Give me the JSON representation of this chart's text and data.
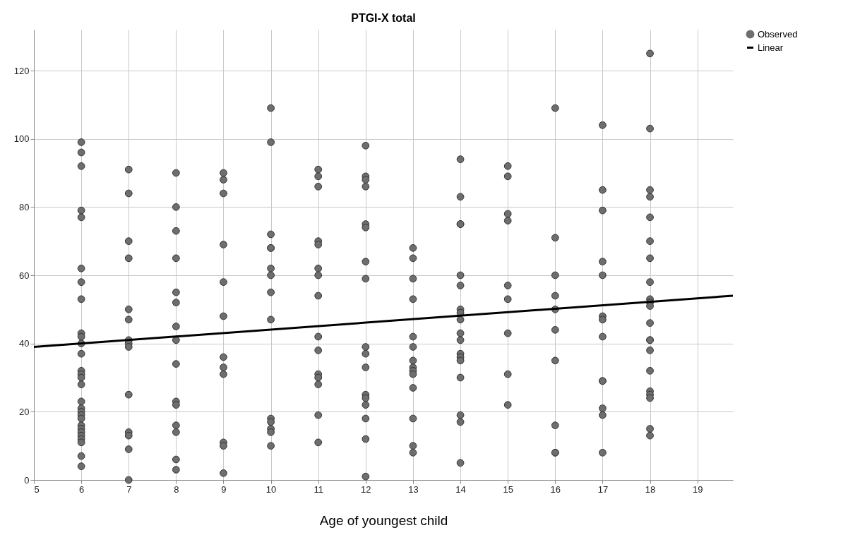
{
  "chart_data": {
    "type": "scatter",
    "title": "PTGI-X total",
    "xlabel": "Age of youngest child",
    "xlim": [
      5,
      19.75
    ],
    "xticks": [
      5,
      6,
      7,
      8,
      9,
      10,
      11,
      12,
      13,
      14,
      15,
      16,
      17,
      18,
      19
    ],
    "ylim": [
      0,
      132
    ],
    "yticks": [
      0,
      20,
      40,
      60,
      80,
      100,
      120
    ],
    "grid": true,
    "legend": "top right",
    "series": [
      {
        "name": "Observed",
        "color": "#6e6e6e",
        "marker": "circle",
        "x": [
          6,
          6,
          6,
          6,
          6,
          6,
          6,
          6,
          6,
          6,
          6,
          6,
          6,
          6,
          6,
          6,
          6,
          6,
          6,
          6,
          6,
          6,
          6,
          6,
          6,
          6,
          6,
          6,
          6,
          7,
          7,
          7,
          7,
          7,
          7,
          7,
          7,
          7,
          7,
          7,
          7,
          7,
          7,
          8,
          8,
          8,
          8,
          8,
          8,
          8,
          8,
          8,
          8,
          8,
          8,
          8,
          8,
          8,
          9,
          9,
          9,
          9,
          9,
          9,
          9,
          9,
          9,
          9,
          9,
          9,
          10,
          10,
          10,
          10,
          10,
          10,
          10,
          10,
          10,
          10,
          10,
          10,
          10,
          10,
          11,
          11,
          11,
          11,
          11,
          11,
          11,
          11,
          11,
          11,
          11,
          11,
          11,
          11,
          11,
          12,
          12,
          12,
          12,
          12,
          12,
          12,
          12,
          12,
          12,
          12,
          12,
          12,
          12,
          12,
          12,
          12,
          13,
          13,
          13,
          13,
          13,
          13,
          13,
          13,
          13,
          13,
          13,
          13,
          13,
          13,
          14,
          14,
          14,
          14,
          14,
          14,
          14,
          14,
          14,
          14,
          14,
          14,
          14,
          14,
          14,
          14,
          14,
          14,
          15,
          15,
          15,
          15,
          15,
          15,
          15,
          15,
          15,
          16,
          16,
          16,
          16,
          16,
          16,
          16,
          16,
          16,
          16,
          17,
          17,
          17,
          17,
          17,
          17,
          17,
          17,
          17,
          17,
          17,
          17,
          17,
          18,
          18,
          18,
          18,
          18,
          18,
          18,
          18,
          18,
          18,
          18,
          18,
          18,
          18,
          18,
          18,
          18,
          18,
          18,
          18,
          18
        ],
        "values": [
          99,
          96,
          92,
          79,
          77,
          62,
          58,
          53,
          43,
          42,
          40,
          37,
          32,
          31,
          30,
          28,
          23,
          21,
          20,
          19,
          18,
          16,
          15,
          14,
          13,
          12,
          11,
          7,
          4,
          91,
          84,
          70,
          65,
          50,
          47,
          41,
          40,
          39,
          25,
          14,
          13,
          9,
          0,
          90,
          80,
          73,
          65,
          55,
          52,
          45,
          41,
          34,
          23,
          22,
          16,
          14,
          6,
          3,
          90,
          88,
          84,
          69,
          58,
          48,
          36,
          33,
          31,
          11,
          10,
          2,
          109,
          99,
          72,
          68,
          68,
          62,
          60,
          55,
          47,
          18,
          17,
          15,
          14,
          10,
          91,
          89,
          86,
          70,
          69,
          62,
          60,
          54,
          42,
          38,
          31,
          30,
          28,
          19,
          11,
          98,
          89,
          88,
          86,
          75,
          74,
          64,
          59,
          39,
          37,
          33,
          25,
          24,
          22,
          18,
          12,
          1,
          68,
          65,
          59,
          53,
          42,
          39,
          35,
          33,
          32,
          31,
          27,
          18,
          10,
          8,
          94,
          83,
          75,
          75,
          60,
          57,
          50,
          49,
          47,
          43,
          41,
          37,
          36,
          35,
          30,
          19,
          17,
          5,
          92,
          89,
          78,
          76,
          57,
          53,
          43,
          31,
          22,
          109,
          71,
          60,
          54,
          50,
          44,
          35,
          16,
          8,
          8,
          104,
          85,
          79,
          64,
          60,
          48,
          47,
          42,
          29,
          29,
          21,
          19,
          8,
          125,
          103,
          85,
          83,
          77,
          70,
          65,
          58,
          53,
          52,
          51,
          46,
          41,
          41,
          38,
          32,
          26,
          25,
          24,
          15,
          13
        ]
      },
      {
        "name": "Linear",
        "type": "line",
        "color": "#000000",
        "x": [
          5,
          19.75
        ],
        "values": [
          39,
          54
        ]
      }
    ]
  }
}
